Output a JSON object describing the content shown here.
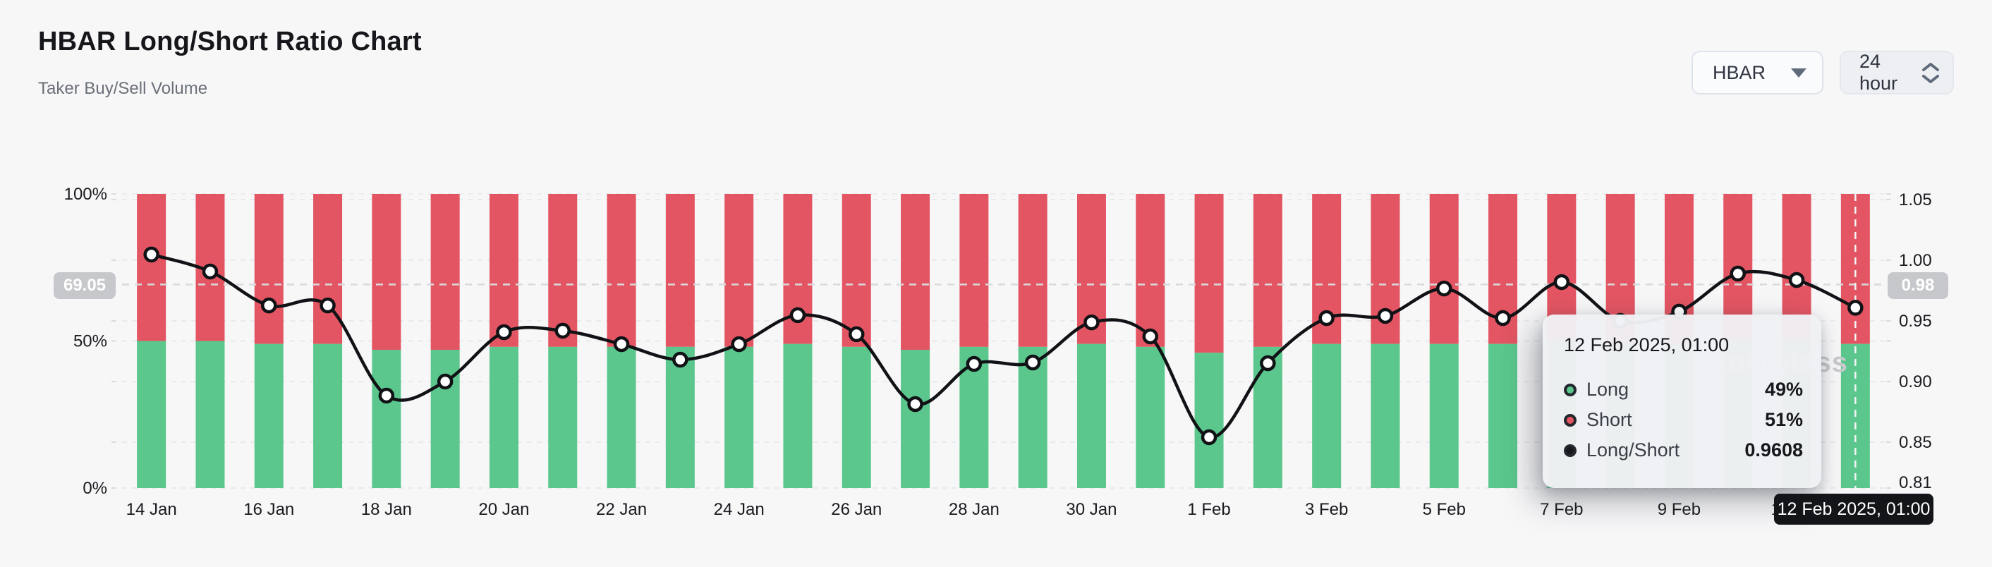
{
  "header": {
    "title": "HBAR Long/Short Ratio Chart",
    "subtitle": "Taker Buy/Sell Volume"
  },
  "controls": {
    "symbol_select": {
      "value": "HBAR"
    },
    "interval_select": {
      "value": "24 hour"
    }
  },
  "chart_data": {
    "type": "bar",
    "subtype": "stacked-bars-with-line",
    "categories": [
      "14 Jan",
      "15 Jan",
      "16 Jan",
      "17 Jan",
      "18 Jan",
      "19 Jan",
      "20 Jan",
      "21 Jan",
      "22 Jan",
      "23 Jan",
      "24 Jan",
      "25 Jan",
      "26 Jan",
      "27 Jan",
      "28 Jan",
      "29 Jan",
      "30 Jan",
      "31 Jan",
      "1 Feb",
      "2 Feb",
      "3 Feb",
      "4 Feb",
      "5 Feb",
      "6 Feb",
      "7 Feb",
      "8 Feb",
      "9 Feb",
      "10 Feb",
      "11 Feb",
      "12 Feb"
    ],
    "series": [
      {
        "name": "Long",
        "type": "bar",
        "stack": true,
        "color": "#5bc78c",
        "values": [
          50,
          50,
          49,
          49,
          47,
          47,
          48,
          48,
          48,
          48,
          48,
          49,
          48,
          47,
          48,
          48,
          49,
          48,
          46,
          48,
          49,
          49,
          49,
          49,
          50,
          49,
          49,
          50,
          50,
          49
        ]
      },
      {
        "name": "Short",
        "type": "bar",
        "stack": true,
        "color": "#e35562",
        "values": [
          50,
          50,
          51,
          51,
          53,
          53,
          52,
          52,
          52,
          52,
          52,
          51,
          52,
          53,
          52,
          52,
          51,
          52,
          54,
          52,
          51,
          51,
          51,
          51,
          50,
          51,
          51,
          50,
          50,
          51
        ]
      },
      {
        "name": "Long/Short",
        "type": "line",
        "color": "#101216",
        "values": [
          1.0047,
          0.9907,
          0.9627,
          0.9627,
          0.8884,
          0.9,
          0.9407,
          0.9419,
          0.9308,
          0.918,
          0.9308,
          0.9547,
          0.939,
          0.8814,
          0.9145,
          0.9157,
          0.9488,
          0.9372,
          0.8541,
          0.9151,
          0.9523,
          0.9541,
          0.9767,
          0.9523,
          0.982,
          0.95,
          0.9576,
          0.989,
          0.9837,
          0.9608
        ]
      }
    ],
    "left_axis": {
      "labels": [
        "100%",
        "50%",
        "0%"
      ],
      "min": 0,
      "max": 100
    },
    "right_axis": {
      "labels": [
        "1.05",
        "1.00",
        "0.95",
        "0.90",
        "0.85",
        "0.81"
      ],
      "min": 0.81,
      "max": 1.055
    },
    "x_axis": {
      "labeled_every": 2
    },
    "grid": true,
    "legend_position": "none",
    "title": "HBAR Long/Short Ratio Chart"
  },
  "crosshair": {
    "hover_index": 29,
    "left_badge": "69.05",
    "right_badge": "0.98",
    "x_label": "12 Feb 2025, 01:00"
  },
  "tooltip": {
    "title": "12 Feb 2025, 01:00",
    "rows": [
      {
        "label": "Long",
        "value": "49%"
      },
      {
        "label": "Short",
        "value": "51%"
      },
      {
        "label": "Long/Short",
        "value": "0.9608"
      }
    ]
  },
  "watermark": "coinglass"
}
